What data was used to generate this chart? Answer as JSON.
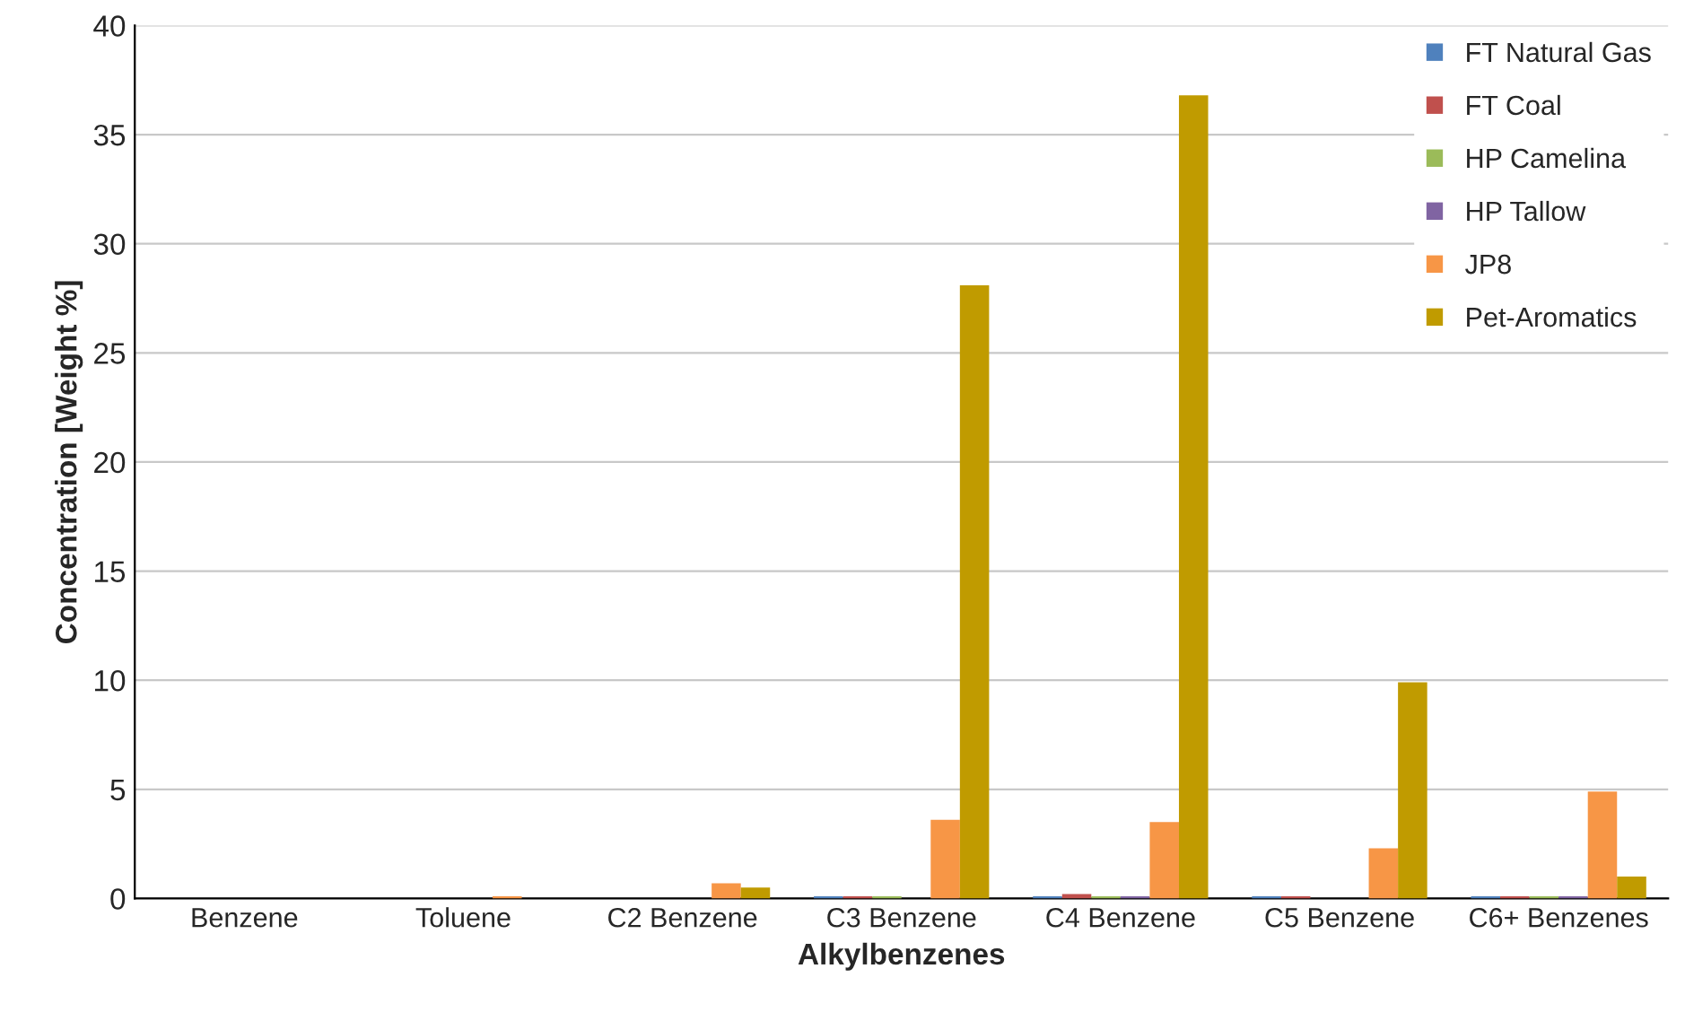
{
  "chart_data": {
    "type": "bar",
    "xlabel": "Alkylbenzenes",
    "ylabel": "Concentration [Weight %]",
    "categories": [
      "Benzene",
      "Toluene",
      "C2 Benzene",
      "C3 Benzene",
      "C4 Benzene",
      "C5 Benzene",
      "C6+ Benzenes"
    ],
    "series": [
      {
        "name": "FT Natural Gas",
        "color": "#4f81bd",
        "values": [
          0,
          0,
          0,
          0.1,
          0.1,
          0.1,
          0.1
        ]
      },
      {
        "name": "FT Coal",
        "color": "#c0504d",
        "values": [
          0,
          0,
          0,
          0.1,
          0.2,
          0.1,
          0.1
        ]
      },
      {
        "name": "HP Camelina",
        "color": "#9bbb59",
        "values": [
          0,
          0,
          0,
          0.1,
          0.1,
          0,
          0.1
        ]
      },
      {
        "name": "HP Tallow",
        "color": "#8064a2",
        "values": [
          0,
          0,
          0,
          0,
          0.1,
          0,
          0.1
        ]
      },
      {
        "name": "JP8",
        "color": "#f79646",
        "values": [
          0,
          0.1,
          0.7,
          3.6,
          3.5,
          2.3,
          4.9
        ]
      },
      {
        "name": "Pet-Aromatics",
        "color": "#c09b00",
        "values": [
          0,
          0,
          0.5,
          28.1,
          36.8,
          9.9,
          1.0
        ]
      }
    ],
    "ylim": [
      0,
      40
    ],
    "yticks": [
      0,
      5,
      10,
      15,
      20,
      25,
      30,
      35,
      40
    ],
    "grid": "y",
    "legend": "top right"
  }
}
